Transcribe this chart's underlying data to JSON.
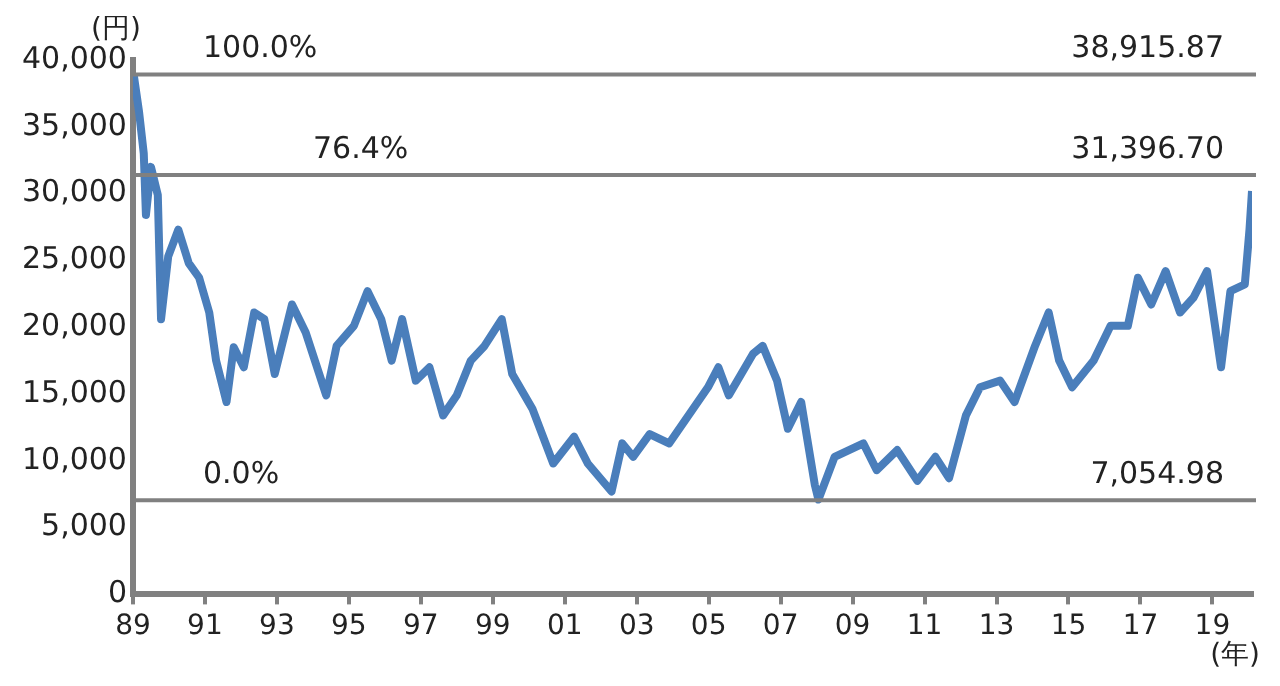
{
  "chart_data": {
    "type": "line",
    "xlabel": "(年)",
    "ylabel": "(円)",
    "xlim": [
      1989,
      2020.1
    ],
    "ylim": [
      0,
      40000
    ],
    "xticks": [
      {
        "value": 1989,
        "label": "89"
      },
      {
        "value": 1991,
        "label": "91"
      },
      {
        "value": 1993,
        "label": "93"
      },
      {
        "value": 1995,
        "label": "95"
      },
      {
        "value": 1997,
        "label": "97"
      },
      {
        "value": 1999,
        "label": "99"
      },
      {
        "value": 2001,
        "label": "01"
      },
      {
        "value": 2003,
        "label": "03"
      },
      {
        "value": 2005,
        "label": "05"
      },
      {
        "value": 2007,
        "label": "07"
      },
      {
        "value": 2009,
        "label": "09"
      },
      {
        "value": 2011,
        "label": "11"
      },
      {
        "value": 2013,
        "label": "13"
      },
      {
        "value": 2015,
        "label": "15"
      },
      {
        "value": 2017,
        "label": "17"
      },
      {
        "value": 2019,
        "label": "19"
      }
    ],
    "yticks": [
      {
        "value": 0,
        "label": "0"
      },
      {
        "value": 5000,
        "label": "5,000"
      },
      {
        "value": 10000,
        "label": "10,000"
      },
      {
        "value": 15000,
        "label": "15,000"
      },
      {
        "value": 20000,
        "label": "20,000"
      },
      {
        "value": 25000,
        "label": "25,000"
      },
      {
        "value": 30000,
        "label": "30,000"
      },
      {
        "value": 35000,
        "label": "35,000"
      },
      {
        "value": 40000,
        "label": "40,000"
      }
    ],
    "marker": "none",
    "line_style": "solid",
    "series": [
      {
        "color": "#4a7ebb",
        "x": [
          1989.02,
          1989.17,
          1989.3,
          1989.36,
          1989.5,
          1989.69,
          1989.78,
          1989.98,
          1990.26,
          1990.55,
          1990.84,
          1991.12,
          1991.31,
          1991.6,
          1991.8,
          1992.08,
          1992.37,
          1992.65,
          1992.94,
          1993.42,
          1993.8,
          1994.37,
          1994.66,
          1995.14,
          1995.52,
          1995.9,
          1996.19,
          1996.48,
          1996.86,
          1997.24,
          1997.62,
          1998.0,
          1998.39,
          1998.77,
          1999.25,
          1999.54,
          2000.1,
          2000.68,
          2001.26,
          2001.64,
          2002.3,
          2002.6,
          2002.9,
          2003.36,
          2003.9,
          2004.98,
          2005.27,
          2005.56,
          2006.23,
          2006.5,
          2006.9,
          2007.2,
          2007.57,
          2007.95,
          2008.05,
          2008.5,
          2009.3,
          2009.67,
          2010.24,
          2010.8,
          2011.3,
          2011.68,
          2012.15,
          2012.54,
          2013.1,
          2013.5,
          2014.07,
          2014.45,
          2014.74,
          2015.1,
          2015.7,
          2016.17,
          2016.65,
          2016.93,
          2017.3,
          2017.7,
          2018.1,
          2018.47,
          2018.85,
          2019.24,
          2019.5,
          2019.9,
          2020.03,
          2020.1
        ],
        "values": [
          38900,
          36100,
          33000,
          28400,
          32000,
          29900,
          20600,
          25300,
          27300,
          24800,
          23700,
          21100,
          17500,
          14400,
          18500,
          17000,
          21100,
          20600,
          16500,
          21700,
          19600,
          14900,
          18600,
          20100,
          22700,
          20600,
          17500,
          20600,
          16000,
          17000,
          13400,
          14900,
          17500,
          18600,
          20600,
          16500,
          13900,
          9800,
          11800,
          9800,
          7700,
          11300,
          10300,
          12000,
          11300,
          15500,
          17000,
          14900,
          18000,
          18600,
          16000,
          12400,
          14400,
          8200,
          7100,
          10300,
          11300,
          9300,
          10800,
          8500,
          10300,
          8700,
          13400,
          15500,
          16000,
          14400,
          18600,
          21100,
          17500,
          15500,
          17500,
          20100,
          20100,
          23700,
          21700,
          24200,
          21100,
          22200,
          24200,
          17000,
          22700,
          23200,
          27300,
          30200
        ]
      }
    ],
    "ref_lines": [
      {
        "axis": "y",
        "value": 38915.87,
        "label": "38,915.87",
        "color": "#808080"
      },
      {
        "axis": "y",
        "value": 31396.7,
        "label": "31,396.70",
        "color": "#808080"
      },
      {
        "axis": "y",
        "value": 7054.98,
        "label": "7,054.98",
        "color": "#808080"
      }
    ],
    "annotations": [
      {
        "text": "100.0%",
        "y": 38915.87
      },
      {
        "text": "76.4%",
        "y": 31396.7
      },
      {
        "text": "0.0%",
        "y": 7054.98
      }
    ]
  }
}
